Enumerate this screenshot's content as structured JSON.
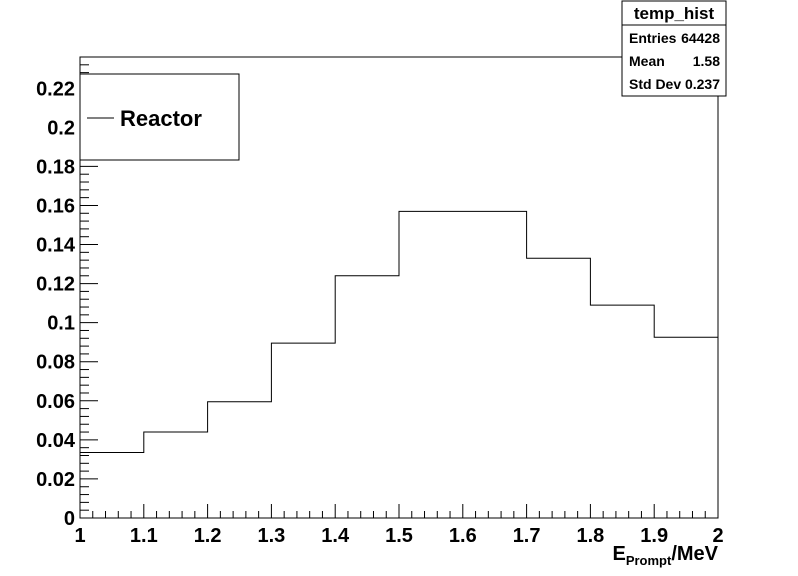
{
  "chart_data": {
    "type": "histogram",
    "title": "",
    "xlabel": {
      "main": "E",
      "sub": "Prompt",
      "unit": "/MeV"
    },
    "ylabel": "",
    "xlim": [
      1,
      2
    ],
    "ylim": [
      0,
      0.236
    ],
    "x_ticks": [
      "1",
      "1.1",
      "1.2",
      "1.3",
      "1.4",
      "1.5",
      "1.6",
      "1.7",
      "1.8",
      "1.9",
      "2"
    ],
    "y_ticks": [
      "0",
      "0.02",
      "0.04",
      "0.06",
      "0.08",
      "0.1",
      "0.12",
      "0.14",
      "0.16",
      "0.18",
      "0.2",
      "0.22"
    ],
    "bins": [
      {
        "x0": 1.0,
        "x1": 1.1,
        "y": 0.0335
      },
      {
        "x0": 1.1,
        "x1": 1.2,
        "y": 0.044
      },
      {
        "x0": 1.2,
        "x1": 1.3,
        "y": 0.0595
      },
      {
        "x0": 1.3,
        "x1": 1.4,
        "y": 0.0895
      },
      {
        "x0": 1.4,
        "x1": 1.5,
        "y": 0.124
      },
      {
        "x0": 1.5,
        "x1": 1.7,
        "y": 0.157
      },
      {
        "x0": 1.7,
        "x1": 1.8,
        "y": 0.133
      },
      {
        "x0": 1.8,
        "x1": 1.9,
        "y": 0.109
      },
      {
        "x0": 1.9,
        "x1": 2.0,
        "y": 0.0925
      }
    ],
    "legend": {
      "label": "Reactor",
      "position": "top-left"
    },
    "stats_box": {
      "title": "temp_hist",
      "rows": [
        {
          "label": "Entries",
          "value": "64428"
        },
        {
          "label": "Mean",
          "value": "1.58"
        },
        {
          "label": "Std Dev",
          "value": "0.237"
        }
      ]
    },
    "grid": false
  }
}
